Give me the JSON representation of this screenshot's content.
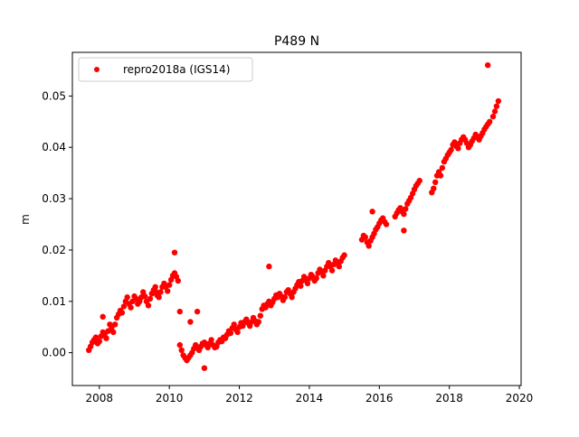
{
  "chart_data": {
    "type": "scatter",
    "title": "P489 N",
    "xlabel": "",
    "ylabel": "m",
    "xlim": [
      2007.23,
      2020.05
    ],
    "ylim": [
      -0.0064,
      0.0585
    ],
    "xticks": [
      2008,
      2010,
      2012,
      2014,
      2016,
      2018,
      2020
    ],
    "xtick_labels": [
      "2008",
      "2010",
      "2012",
      "2014",
      "2016",
      "2018",
      "2020"
    ],
    "yticks": [
      0.0,
      0.01,
      0.02,
      0.03,
      0.04,
      0.05
    ],
    "ytick_labels": [
      "0.00",
      "0.01",
      "0.02",
      "0.03",
      "0.04",
      "0.05"
    ],
    "grid": false,
    "legend_position": "upper left",
    "series": [
      {
        "name": "repro2018a (IGS14)",
        "color": "#ff0000",
        "marker": "circle",
        "x": [
          2007.7,
          2007.75,
          2007.8,
          2007.85,
          2007.9,
          2007.95,
          2008.0,
          2008.05,
          2008.1,
          2008.15,
          2008.2,
          2008.25,
          2008.3,
          2008.35,
          2008.4,
          2008.45,
          2008.5,
          2008.55,
          2008.6,
          2008.65,
          2008.7,
          2008.75,
          2008.8,
          2008.85,
          2008.9,
          2008.95,
          2009.0,
          2009.05,
          2009.1,
          2009.15,
          2009.2,
          2009.25,
          2009.3,
          2009.35,
          2009.4,
          2009.45,
          2009.5,
          2009.55,
          2009.6,
          2009.65,
          2009.7,
          2009.75,
          2009.8,
          2009.85,
          2009.9,
          2009.95,
          2010.0,
          2010.05,
          2010.1,
          2010.15,
          2010.2,
          2010.25,
          2010.3,
          2010.35,
          2010.4,
          2010.45,
          2010.5,
          2010.55,
          2010.6,
          2010.65,
          2010.7,
          2010.75,
          2010.8,
          2010.85,
          2010.9,
          2010.95,
          2011.0,
          2011.05,
          2011.1,
          2011.15,
          2011.2,
          2011.25,
          2011.3,
          2011.35,
          2011.4,
          2011.45,
          2011.5,
          2011.55,
          2011.6,
          2011.65,
          2011.7,
          2011.75,
          2011.8,
          2011.85,
          2011.9,
          2011.95,
          2012.0,
          2012.05,
          2012.1,
          2012.15,
          2012.2,
          2012.25,
          2012.3,
          2012.35,
          2012.4,
          2012.45,
          2012.5,
          2012.55,
          2012.6,
          2012.65,
          2012.7,
          2012.75,
          2012.8,
          2012.85,
          2012.9,
          2012.95,
          2013.0,
          2013.05,
          2013.1,
          2013.15,
          2013.2,
          2013.25,
          2013.3,
          2013.35,
          2013.4,
          2013.45,
          2013.5,
          2013.55,
          2013.6,
          2013.65,
          2013.7,
          2013.75,
          2013.8,
          2013.85,
          2013.9,
          2013.95,
          2014.0,
          2014.05,
          2014.1,
          2014.15,
          2014.2,
          2014.25,
          2014.3,
          2014.35,
          2014.4,
          2014.45,
          2014.5,
          2014.55,
          2014.6,
          2014.65,
          2014.7,
          2014.75,
          2014.8,
          2014.85,
          2014.9,
          2014.95,
          2015.0,
          2015.5,
          2015.55,
          2015.6,
          2015.65,
          2015.7,
          2015.75,
          2015.8,
          2015.85,
          2015.9,
          2015.95,
          2016.0,
          2016.05,
          2016.1,
          2016.15,
          2016.2,
          2016.45,
          2016.5,
          2016.55,
          2016.6,
          2016.65,
          2016.7,
          2016.75,
          2016.8,
          2016.85,
          2016.9,
          2016.95,
          2017.0,
          2017.05,
          2017.1,
          2017.15,
          2017.5,
          2017.55,
          2017.6,
          2017.65,
          2017.7,
          2017.75,
          2017.8,
          2017.85,
          2017.9,
          2017.95,
          2018.0,
          2018.05,
          2018.1,
          2018.15,
          2018.2,
          2018.25,
          2018.3,
          2018.35,
          2018.4,
          2018.45,
          2018.5,
          2018.55,
          2018.6,
          2018.65,
          2018.7,
          2018.75,
          2018.8,
          2018.85,
          2018.9,
          2018.95,
          2019.0,
          2019.05,
          2019.1,
          2019.15,
          2019.25,
          2019.3,
          2019.35,
          2019.4,
          2008.1,
          2009.6,
          2010.15,
          2010.3,
          2010.6,
          2010.8,
          2011.0,
          2012.85,
          2015.8,
          2016.7,
          2019.1
        ],
        "y": [
          0.0005,
          0.0012,
          0.002,
          0.0025,
          0.003,
          0.0018,
          0.0022,
          0.0032,
          0.004,
          0.0035,
          0.0028,
          0.0042,
          0.0055,
          0.0048,
          0.004,
          0.0055,
          0.0068,
          0.0075,
          0.0082,
          0.0078,
          0.009,
          0.01,
          0.0108,
          0.0095,
          0.0088,
          0.01,
          0.011,
          0.0105,
          0.0095,
          0.01,
          0.0108,
          0.0118,
          0.011,
          0.01,
          0.0092,
          0.0105,
          0.0115,
          0.0122,
          0.012,
          0.0112,
          0.0108,
          0.0118,
          0.0128,
          0.0135,
          0.0128,
          0.012,
          0.0132,
          0.0142,
          0.015,
          0.0155,
          0.0148,
          0.014,
          0.0015,
          0.0005,
          -0.0005,
          -0.001,
          -0.0015,
          -0.001,
          -0.0005,
          0.0,
          0.0008,
          0.0015,
          0.001,
          0.0005,
          0.0012,
          0.0018,
          0.002,
          0.0015,
          0.001,
          0.0018,
          0.0025,
          0.0015,
          0.001,
          0.0012,
          0.002,
          0.0025,
          0.0022,
          0.003,
          0.0028,
          0.0035,
          0.0042,
          0.0038,
          0.0048,
          0.0055,
          0.0045,
          0.004,
          0.005,
          0.0058,
          0.0052,
          0.006,
          0.0065,
          0.0058,
          0.0052,
          0.006,
          0.0068,
          0.0062,
          0.0055,
          0.006,
          0.0072,
          0.0085,
          0.0092,
          0.0088,
          0.0095,
          0.01,
          0.0092,
          0.0098,
          0.0105,
          0.0112,
          0.0108,
          0.0115,
          0.011,
          0.0102,
          0.0108,
          0.0118,
          0.0122,
          0.0115,
          0.0108,
          0.0118,
          0.0125,
          0.0132,
          0.0138,
          0.013,
          0.014,
          0.0148,
          0.0142,
          0.0135,
          0.0145,
          0.0152,
          0.0148,
          0.014,
          0.0145,
          0.0155,
          0.0162,
          0.0158,
          0.015,
          0.016,
          0.0168,
          0.0175,
          0.0168,
          0.016,
          0.0172,
          0.018,
          0.0175,
          0.0168,
          0.0178,
          0.0185,
          0.019,
          0.022,
          0.0228,
          0.0225,
          0.0215,
          0.0208,
          0.0218,
          0.0225,
          0.0232,
          0.024,
          0.0245,
          0.0252,
          0.0258,
          0.0262,
          0.0255,
          0.025,
          0.0265,
          0.0272,
          0.0278,
          0.0282,
          0.0275,
          0.027,
          0.028,
          0.029,
          0.0296,
          0.0302,
          0.031,
          0.0318,
          0.0325,
          0.033,
          0.0335,
          0.0312,
          0.032,
          0.0332,
          0.0345,
          0.0352,
          0.0345,
          0.036,
          0.0372,
          0.0378,
          0.0385,
          0.039,
          0.0395,
          0.0405,
          0.041,
          0.0402,
          0.0398,
          0.0408,
          0.0415,
          0.042,
          0.0415,
          0.0408,
          0.04,
          0.0405,
          0.0412,
          0.0418,
          0.0425,
          0.042,
          0.0415,
          0.0422,
          0.0428,
          0.0435,
          0.044,
          0.0445,
          0.045,
          0.046,
          0.047,
          0.048,
          0.049,
          0.007,
          0.0128,
          0.0195,
          0.008,
          0.006,
          0.008,
          -0.003,
          0.0168,
          0.0275,
          0.0238,
          0.056
        ]
      }
    ]
  }
}
